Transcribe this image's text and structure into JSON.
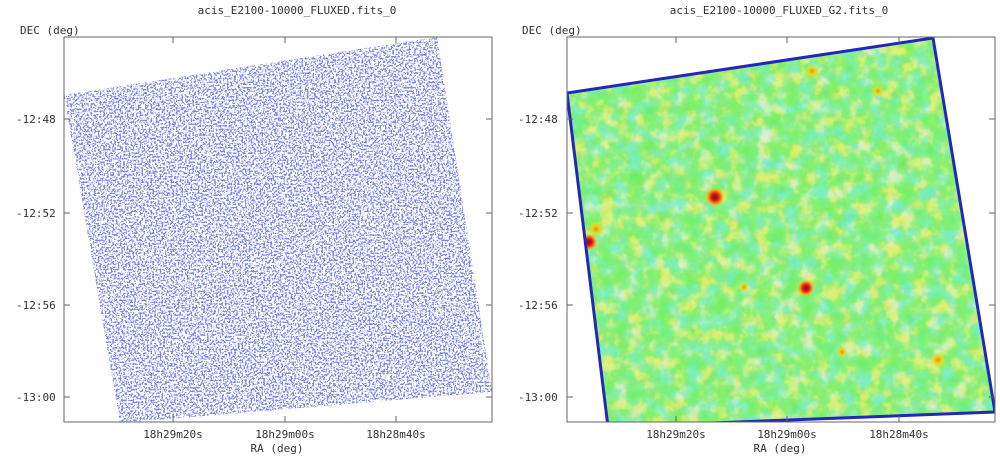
{
  "panels": [
    {
      "title": "acis_E2100-10000_FLUXED.fits_0",
      "ylabel": "DEC (deg)",
      "xlabel": "RA (deg)",
      "yticks": [
        "-12:48",
        "-12:52",
        "-12:56",
        "-13:00"
      ],
      "xticks": [
        "18h29m20s",
        "18h29m00s",
        "18h28m40s"
      ],
      "colormap": "blue-sparse"
    },
    {
      "title": "acis_E2100-10000_FLUXED_G2.fits_0",
      "ylabel": "DEC (deg)",
      "xlabel": "RA (deg)",
      "yticks": [
        "-12:48",
        "-12:52",
        "-12:56",
        "-13:00"
      ],
      "xticks": [
        "18h29m20s",
        "18h29m00s",
        "18h28m40s"
      ],
      "colormap": "smoothed-rainbow"
    }
  ],
  "colors": {
    "frame": "#555555",
    "text": "#333333",
    "blue_pixel": "#2f3fd6",
    "smooth_low": "#2fd4f2",
    "smooth_mid": "#33dd3f",
    "smooth_high": "#d6e81f",
    "source_core": "#e0141a",
    "edge": "#2228b8"
  }
}
